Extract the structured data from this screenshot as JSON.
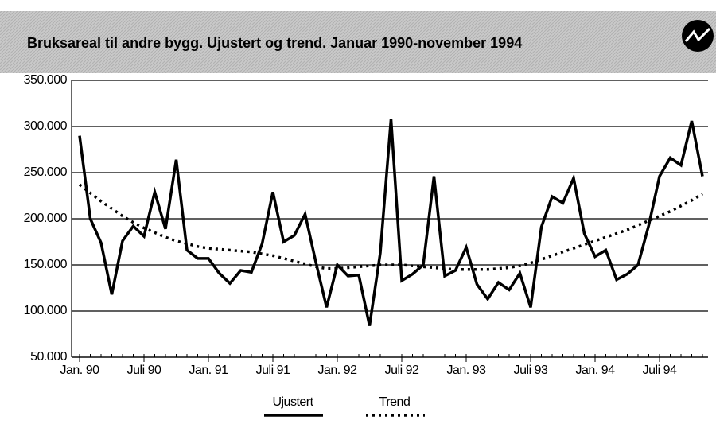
{
  "chart_data": {
    "type": "line",
    "title": "Bruksareal til andre bygg. Ujustert og trend. Januar 1990-november 1994",
    "categories": [
      "Jan. 90",
      null,
      null,
      null,
      null,
      null,
      "Juli 90",
      null,
      null,
      null,
      null,
      null,
      "Jan. 91",
      null,
      null,
      null,
      null,
      null,
      "Juli 91",
      null,
      null,
      null,
      null,
      null,
      "Jan. 92",
      null,
      null,
      null,
      null,
      null,
      "Juli 92",
      null,
      null,
      null,
      null,
      null,
      "Jan. 93",
      null,
      null,
      null,
      null,
      null,
      "Juli 93",
      null,
      null,
      null,
      null,
      null,
      "Jan. 94",
      null,
      null,
      null,
      null,
      null,
      "Juli 94",
      null,
      null,
      null,
      null
    ],
    "series": [
      {
        "name": "Ujustert",
        "color": "#000000",
        "style": "solid",
        "values": [
          290000,
          200000,
          174000,
          118000,
          176000,
          192000,
          181000,
          229000,
          189000,
          264000,
          166000,
          157000,
          157000,
          141000,
          130000,
          144000,
          142000,
          173000,
          229000,
          175000,
          182000,
          205000,
          153000,
          104000,
          150000,
          138000,
          139000,
          84000,
          163000,
          308000,
          133000,
          140000,
          150000,
          246000,
          138000,
          144000,
          169000,
          129000,
          113000,
          131000,
          123000,
          141000,
          104000,
          191000,
          224000,
          217000,
          244000,
          184000,
          159000,
          166000,
          134000,
          140000,
          150000,
          193000,
          246000,
          266000,
          258000,
          306000,
          246000
        ]
      },
      {
        "name": "Trend",
        "color": "#000000",
        "style": "dotted",
        "values": [
          237000,
          228000,
          219000,
          211000,
          203000,
          196000,
          190000,
          185000,
          180000,
          176000,
          173000,
          170000,
          168000,
          167000,
          166000,
          165000,
          164000,
          162000,
          160000,
          157000,
          154000,
          151000,
          148000,
          146000,
          146000,
          147000,
          148000,
          149000,
          150000,
          150000,
          150000,
          149000,
          148000,
          147000,
          146000,
          145000,
          145000,
          145000,
          145000,
          146000,
          147000,
          149000,
          152000,
          156000,
          160000,
          164000,
          168000,
          172000,
          176000,
          180000,
          184000,
          188000,
          193000,
          198000,
          203000,
          208000,
          214000,
          220000,
          227000
        ]
      }
    ],
    "ylim": [
      50000,
      350000
    ],
    "yticks": [
      {
        "value": 50000,
        "label": "50.000"
      },
      {
        "value": 100000,
        "label": "100.000"
      },
      {
        "value": 150000,
        "label": "150.000"
      },
      {
        "value": 200000,
        "label": "200.000"
      },
      {
        "value": 250000,
        "label": "250.000"
      },
      {
        "value": 300000,
        "label": "300.000"
      },
      {
        "value": 350000,
        "label": "350.000"
      }
    ],
    "grid": true,
    "legend": "bottom"
  }
}
